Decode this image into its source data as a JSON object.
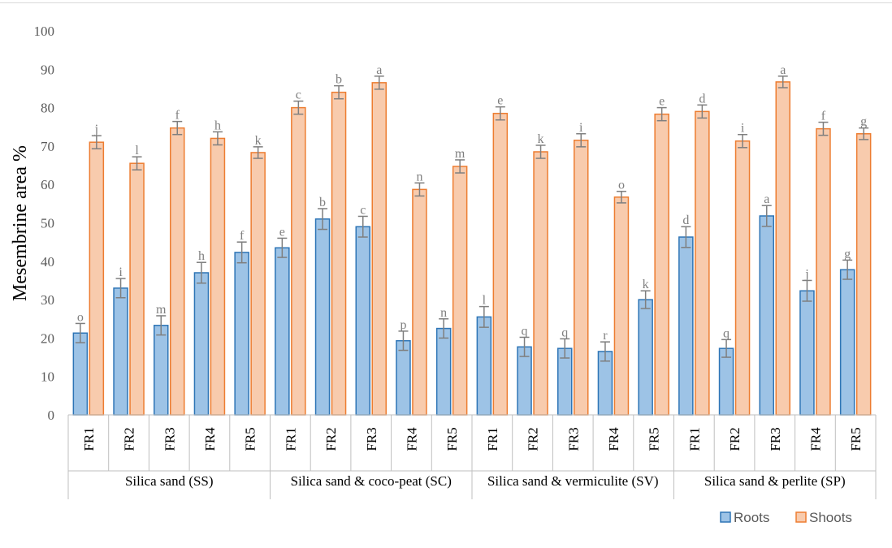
{
  "chart_data": {
    "type": "bar",
    "ylabel": "Mesembrine area %",
    "ylim": [
      0,
      100
    ],
    "yticks": [
      0,
      10,
      20,
      30,
      40,
      50,
      60,
      70,
      80,
      90,
      100
    ],
    "grid": false,
    "legend_position": "bottom-right",
    "groups": [
      "Silica sand (SS)",
      "Silica sand & coco-peat (SC)",
      "Silica sand & vermiculite (SV)",
      "Silica sand & perlite (SP)"
    ],
    "subcategories": [
      "FR1",
      "FR2",
      "FR3",
      "FR4",
      "FR5"
    ],
    "series": [
      {
        "name": "Roots",
        "color": "#9DC3E6",
        "border": "#2E75B6",
        "values": [
          21.3,
          33.0,
          23.3,
          37.0,
          42.3,
          43.5,
          51.0,
          49.0,
          19.3,
          22.5,
          25.5,
          17.7,
          17.3,
          16.5,
          30.0,
          46.3,
          17.3,
          51.8,
          32.3,
          37.8
        ],
        "errors": [
          2.5,
          2.5,
          2.5,
          2.7,
          2.7,
          2.5,
          2.7,
          2.7,
          2.5,
          2.5,
          2.7,
          2.5,
          2.5,
          2.5,
          2.3,
          2.7,
          2.3,
          2.7,
          2.7,
          2.5
        ],
        "labels": [
          "o",
          "i",
          "m",
          "h",
          "f",
          "e",
          "b",
          "c",
          "p",
          "n",
          "l",
          "q",
          "q",
          "r",
          "k",
          "d",
          "q",
          "a",
          "j",
          "g"
        ]
      },
      {
        "name": "Shoots",
        "color": "#F8CBAD",
        "border": "#ED7D31",
        "values": [
          71.0,
          65.5,
          74.7,
          72.0,
          68.3,
          80.0,
          84.0,
          86.5,
          58.7,
          64.7,
          78.5,
          68.5,
          71.5,
          56.7,
          78.3,
          79.0,
          71.3,
          86.7,
          74.5,
          73.2
        ],
        "errors": [
          1.7,
          1.7,
          1.7,
          1.7,
          1.5,
          1.7,
          1.7,
          1.7,
          1.7,
          1.7,
          1.7,
          1.7,
          1.7,
          1.5,
          1.7,
          1.7,
          1.7,
          1.5,
          1.7,
          1.5
        ],
        "labels": [
          "j",
          "l",
          "f",
          "h",
          "k",
          "c",
          "b",
          "a",
          "n",
          "m",
          "e",
          "k",
          "i",
          "o",
          "e",
          "d",
          "i",
          "a",
          "f",
          "g"
        ]
      }
    ]
  }
}
